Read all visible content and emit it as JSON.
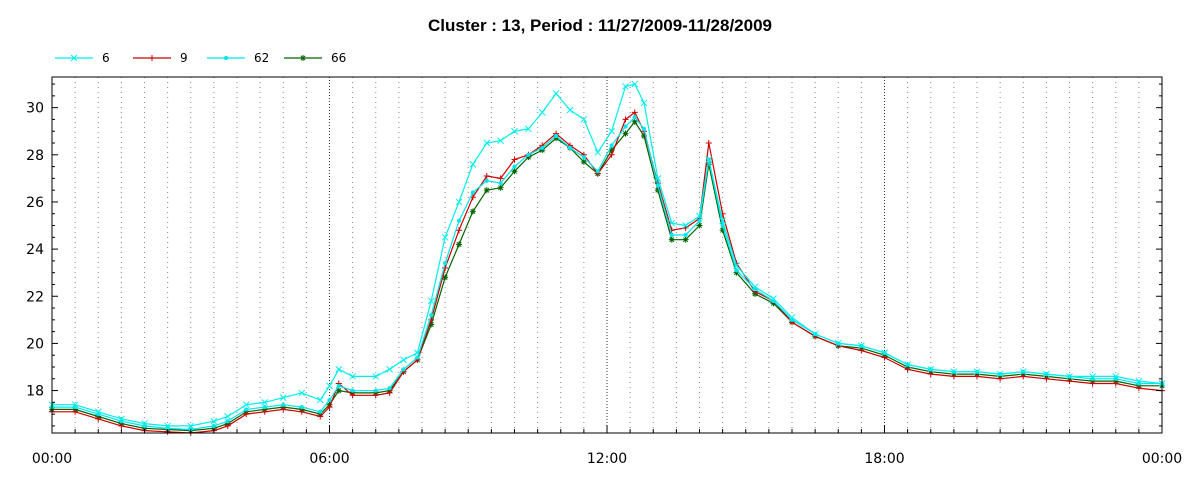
{
  "chart_data": {
    "type": "line",
    "title": "Cluster : 13, Period : 11/27/2009-11/28/2009",
    "xlabel": "",
    "ylabel": "",
    "x_unit": "hours since 11/27/2009 00:00",
    "xlim": [
      0,
      24
    ],
    "ylim": [
      16.2,
      31.3
    ],
    "x_ticks": [
      {
        "value": 0,
        "label": "00:00"
      },
      {
        "value": 6,
        "label": "06:00"
      },
      {
        "value": 12,
        "label": "12:00"
      },
      {
        "value": 18,
        "label": "18:00"
      },
      {
        "value": 24,
        "label": "00:00"
      }
    ],
    "y_ticks": [
      {
        "value": 18,
        "label": "18"
      },
      {
        "value": 20,
        "label": "20"
      },
      {
        "value": 22,
        "label": "22"
      },
      {
        "value": 24,
        "label": "24"
      },
      {
        "value": 26,
        "label": "26"
      },
      {
        "value": 28,
        "label": "28"
      },
      {
        "value": 30,
        "label": "30"
      }
    ],
    "grid": "dotted vertical",
    "legend_position": "top-left",
    "series": [
      {
        "name": "66",
        "color": "#006400",
        "marker": "asterisk",
        "x": [
          0,
          0.5,
          1,
          1.5,
          2,
          2.5,
          3,
          3.5,
          3.8,
          4.2,
          4.6,
          5.0,
          5.4,
          5.8,
          6.0,
          6.2,
          6.5,
          7.0,
          7.3,
          7.6,
          7.9,
          8.2,
          8.5,
          8.8,
          9.1,
          9.4,
          9.7,
          10.0,
          10.3,
          10.6,
          10.9,
          11.2,
          11.5,
          11.8,
          12.1,
          12.4,
          12.6,
          12.8,
          13.1,
          13.4,
          13.7,
          14.0,
          14.2,
          14.5,
          14.8,
          15.2,
          15.6,
          16.0,
          16.5,
          17.0,
          17.5,
          18.0,
          18.5,
          19.0,
          19.5,
          20.0,
          20.5,
          21.0,
          21.5,
          22.0,
          22.5,
          23.0,
          23.5,
          24.0
        ],
        "y": [
          17.2,
          17.2,
          16.9,
          16.6,
          16.4,
          16.35,
          16.3,
          16.4,
          16.6,
          17.1,
          17.2,
          17.3,
          17.2,
          17.0,
          17.4,
          18.0,
          17.9,
          17.9,
          18.0,
          18.8,
          19.3,
          20.8,
          22.8,
          24.2,
          25.6,
          26.5,
          26.6,
          27.3,
          27.9,
          28.2,
          28.7,
          28.3,
          27.7,
          27.2,
          28.2,
          28.9,
          29.4,
          28.8,
          26.5,
          24.4,
          24.4,
          25.0,
          27.6,
          24.8,
          23.0,
          22.1,
          21.7,
          20.9,
          20.3,
          19.9,
          19.8,
          19.5,
          19.0,
          18.8,
          18.7,
          18.7,
          18.6,
          18.7,
          18.6,
          18.5,
          18.4,
          18.4,
          18.2,
          18.2
        ]
      },
      {
        "name": "9",
        "color": "#cc0000",
        "marker": "plus",
        "x": [
          0,
          0.5,
          1,
          1.5,
          2,
          2.5,
          3,
          3.5,
          3.8,
          4.2,
          4.6,
          5.0,
          5.4,
          5.8,
          6.0,
          6.2,
          6.5,
          7.0,
          7.3,
          7.6,
          7.9,
          8.2,
          8.5,
          8.8,
          9.1,
          9.4,
          9.7,
          10.0,
          10.3,
          10.6,
          10.9,
          11.2,
          11.5,
          11.8,
          12.1,
          12.4,
          12.6,
          12.8,
          13.1,
          13.4,
          13.7,
          14.0,
          14.2,
          14.5,
          14.8,
          15.2,
          15.6,
          16.0,
          16.5,
          17.0,
          17.5,
          18.0,
          18.5,
          19.0,
          19.5,
          20.0,
          20.5,
          21.0,
          21.5,
          22.0,
          22.5,
          23.0,
          23.5,
          24.0
        ],
        "y": [
          17.1,
          17.1,
          16.8,
          16.5,
          16.3,
          16.25,
          16.2,
          16.3,
          16.5,
          17.0,
          17.1,
          17.2,
          17.1,
          16.9,
          17.3,
          18.3,
          17.8,
          17.8,
          17.9,
          18.8,
          19.3,
          21.0,
          23.2,
          24.8,
          26.2,
          27.1,
          27.0,
          27.8,
          28.0,
          28.4,
          28.9,
          28.4,
          28.0,
          27.2,
          28.0,
          29.5,
          29.8,
          29.0,
          26.8,
          24.8,
          24.9,
          25.3,
          28.5,
          25.5,
          23.4,
          22.2,
          21.8,
          20.9,
          20.3,
          19.9,
          19.7,
          19.4,
          18.9,
          18.7,
          18.6,
          18.6,
          18.5,
          18.6,
          18.5,
          18.4,
          18.3,
          18.3,
          18.1,
          18.0
        ]
      },
      {
        "name": "62",
        "color": "#00e5ee",
        "marker": "dot",
        "x": [
          0,
          0.5,
          1,
          1.5,
          2,
          2.5,
          3,
          3.5,
          3.8,
          4.2,
          4.6,
          5.0,
          5.4,
          5.8,
          6.0,
          6.2,
          6.5,
          7.0,
          7.3,
          7.6,
          7.9,
          8.2,
          8.5,
          8.8,
          9.1,
          9.4,
          9.7,
          10.0,
          10.3,
          10.6,
          10.9,
          11.2,
          11.5,
          11.8,
          12.1,
          12.4,
          12.6,
          12.8,
          13.1,
          13.4,
          13.7,
          14.0,
          14.2,
          14.5,
          14.8,
          15.2,
          15.6,
          16.0,
          16.5,
          17.0,
          17.5,
          18.0,
          18.5,
          19.0,
          19.5,
          20.0,
          20.5,
          21.0,
          21.5,
          22.0,
          22.5,
          23.0,
          23.5,
          24.0
        ],
        "y": [
          17.3,
          17.3,
          17.0,
          16.7,
          16.5,
          16.4,
          16.35,
          16.5,
          16.7,
          17.2,
          17.3,
          17.4,
          17.3,
          17.1,
          17.6,
          18.2,
          18.0,
          18.0,
          18.1,
          18.9,
          19.4,
          21.2,
          23.4,
          25.2,
          26.4,
          26.9,
          26.8,
          27.5,
          28.0,
          28.3,
          28.8,
          28.3,
          27.9,
          27.3,
          28.4,
          29.2,
          29.6,
          29.1,
          26.7,
          24.6,
          24.6,
          25.2,
          27.8,
          25.0,
          23.1,
          22.3,
          21.8,
          21.0,
          20.4,
          20.0,
          19.9,
          19.6,
          19.1,
          18.9,
          18.8,
          18.8,
          18.7,
          18.8,
          18.7,
          18.6,
          18.5,
          18.5,
          18.3,
          18.3
        ]
      },
      {
        "name": "6",
        "color": "#00eeee",
        "marker": "cross",
        "x": [
          0,
          0.5,
          1,
          1.5,
          2,
          2.5,
          3,
          3.5,
          3.8,
          4.2,
          4.6,
          5.0,
          5.4,
          5.8,
          6.0,
          6.2,
          6.5,
          7.0,
          7.3,
          7.6,
          7.9,
          8.2,
          8.5,
          8.8,
          9.1,
          9.4,
          9.7,
          10.0,
          10.3,
          10.6,
          10.9,
          11.2,
          11.5,
          11.8,
          12.1,
          12.4,
          12.6,
          12.8,
          13.1,
          13.4,
          13.7,
          14.0,
          14.2,
          14.5,
          14.8,
          15.2,
          15.6,
          16.0,
          16.5,
          17.0,
          17.5,
          18.0,
          18.5,
          19.0,
          19.5,
          20.0,
          20.5,
          21.0,
          21.5,
          22.0,
          22.5,
          23.0,
          23.5,
          24.0
        ],
        "y": [
          17.4,
          17.4,
          17.1,
          16.8,
          16.6,
          16.5,
          16.5,
          16.7,
          16.9,
          17.4,
          17.5,
          17.7,
          17.9,
          17.6,
          18.2,
          18.9,
          18.6,
          18.6,
          18.9,
          19.3,
          19.6,
          21.8,
          24.5,
          26.0,
          27.6,
          28.5,
          28.6,
          29.0,
          29.1,
          29.8,
          30.6,
          29.9,
          29.5,
          28.1,
          29.0,
          30.9,
          31.0,
          30.2,
          27.0,
          25.1,
          25.0,
          25.4,
          27.8,
          25.2,
          23.3,
          22.4,
          21.9,
          21.1,
          20.4,
          20.0,
          19.9,
          19.6,
          19.1,
          18.9,
          18.8,
          18.8,
          18.7,
          18.8,
          18.7,
          18.6,
          18.6,
          18.6,
          18.4,
          18.3
        ]
      }
    ]
  }
}
